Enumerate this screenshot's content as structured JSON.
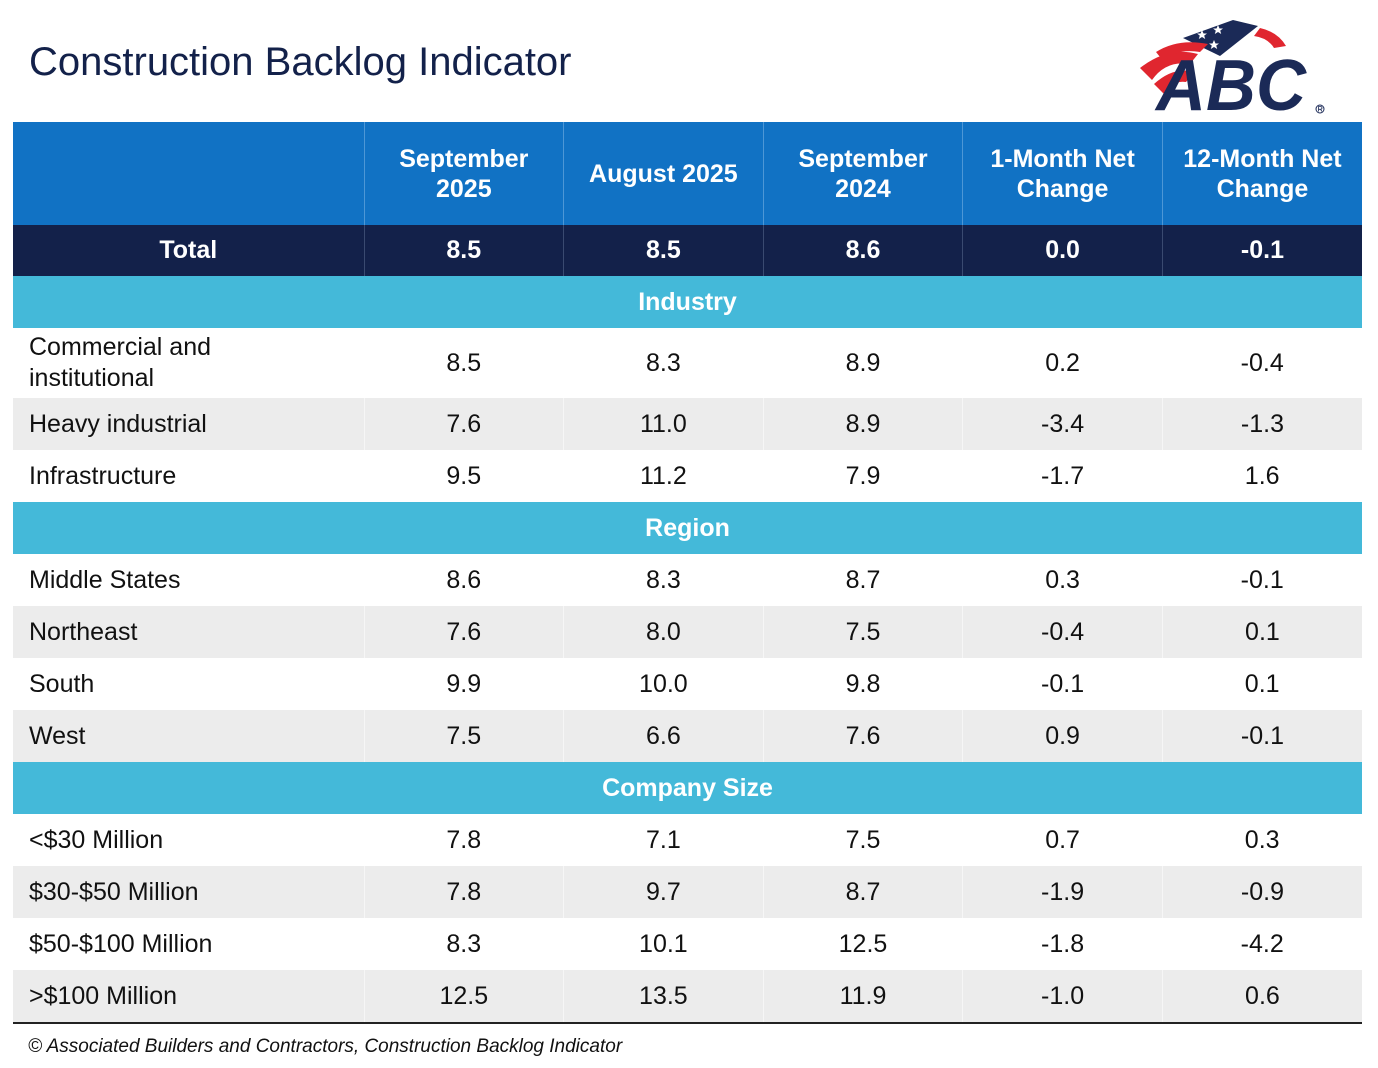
{
  "title": "Construction Backlog Indicator",
  "logo": {
    "text": "ABC",
    "colors": {
      "navy": "#1b2a57",
      "red": "#e0262f"
    }
  },
  "colors": {
    "header": "#1172c4",
    "total": "#13214a",
    "section": "#44b9d9",
    "alt_row": "#ececec"
  },
  "chart_data": {
    "type": "table",
    "columns": [
      "",
      "September 2025",
      "August 2025",
      "September 2024",
      "1-Month Net Change",
      "12-Month Net Change"
    ],
    "total": {
      "label": "Total",
      "values": [
        "8.5",
        "8.5",
        "8.6",
        "0.0",
        "-0.1"
      ]
    },
    "sections": [
      {
        "name": "Industry",
        "rows": [
          {
            "label": "Commercial and institutional",
            "values": [
              "8.5",
              "8.3",
              "8.9",
              "0.2",
              "-0.4"
            ]
          },
          {
            "label": "Heavy industrial",
            "values": [
              "7.6",
              "11.0",
              "8.9",
              "-3.4",
              "-1.3"
            ]
          },
          {
            "label": "Infrastructure",
            "values": [
              "9.5",
              "11.2",
              "7.9",
              "-1.7",
              "1.6"
            ]
          }
        ]
      },
      {
        "name": "Region",
        "rows": [
          {
            "label": "Middle States",
            "values": [
              "8.6",
              "8.3",
              "8.7",
              "0.3",
              "-0.1"
            ]
          },
          {
            "label": "Northeast",
            "values": [
              "7.6",
              "8.0",
              "7.5",
              "-0.4",
              "0.1"
            ]
          },
          {
            "label": "South",
            "values": [
              "9.9",
              "10.0",
              "9.8",
              "-0.1",
              "0.1"
            ]
          },
          {
            "label": "West",
            "values": [
              "7.5",
              "6.6",
              "7.6",
              "0.9",
              "-0.1"
            ]
          }
        ]
      },
      {
        "name": "Company Size",
        "rows": [
          {
            "label": "<$30 Million",
            "values": [
              "7.8",
              "7.1",
              "7.5",
              "0.7",
              "0.3"
            ]
          },
          {
            "label": "$30-$50 Million",
            "values": [
              "7.8",
              "9.7",
              "8.7",
              "-1.9",
              "-0.9"
            ]
          },
          {
            "label": "$50-$100 Million",
            "values": [
              "8.3",
              "10.1",
              "12.5",
              "-1.8",
              "-4.2"
            ]
          },
          {
            "label": ">$100 Million",
            "values": [
              "12.5",
              "13.5",
              "11.9",
              "-1.0",
              "0.6"
            ]
          }
        ]
      }
    ]
  },
  "footer": "© Associated Builders and Contractors, Construction Backlog Indicator"
}
